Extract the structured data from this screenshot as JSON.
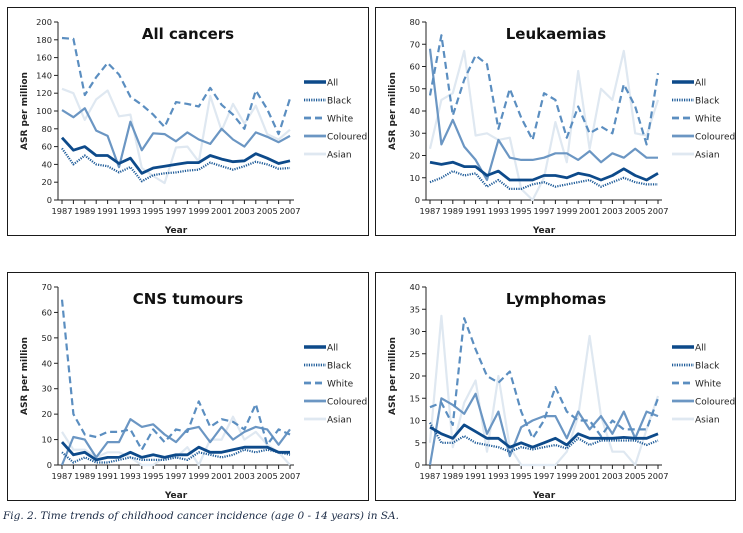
{
  "figure": {
    "caption": "Fig. 2. Time trends of childhood cancer incidence (age 0 - 14 years) in SA."
  },
  "legend_style": {
    "All": {
      "color": "#0d4a8a",
      "dash": "solid",
      "weight": "thick"
    },
    "Black": {
      "color": "#1f5c99",
      "dash": "dotted",
      "weight": "medium"
    },
    "White": {
      "color": "#5b8ec0",
      "dash": "dashed",
      "weight": "medium"
    },
    "Coloured": {
      "color": "#6b96c3",
      "dash": "solid",
      "weight": "medium"
    },
    "Asian": {
      "color": "#dfe8f1",
      "dash": "solid",
      "weight": "medium"
    }
  },
  "chart_data": [
    {
      "type": "line",
      "title": "All cancers",
      "xlabel": "Year",
      "ylabel": "ASR per million",
      "ylim": [
        0,
        200
      ],
      "yticks": [
        0,
        20,
        40,
        60,
        80,
        100,
        120,
        140,
        160,
        180,
        200
      ],
      "xtick_labels": [
        "1987",
        "1989",
        "1991",
        "1993",
        "1995",
        "1997",
        "1999",
        "2001",
        "2003",
        "2005",
        "2007"
      ],
      "x": [
        1987,
        1988,
        1989,
        1990,
        1991,
        1992,
        1993,
        1994,
        1995,
        1996,
        1997,
        1998,
        1999,
        2000,
        2001,
        2002,
        2003,
        2004,
        2005,
        2006,
        2007
      ],
      "legend": "right",
      "grid": false,
      "series": [
        {
          "name": "All",
          "values": [
            70,
            56,
            60,
            50,
            50,
            41,
            47,
            30,
            36,
            38,
            40,
            42,
            42,
            50,
            46,
            43,
            44,
            52,
            47,
            41,
            44
          ]
        },
        {
          "name": "Black",
          "values": [
            58,
            40,
            50,
            40,
            38,
            31,
            37,
            21,
            28,
            30,
            31,
            33,
            34,
            42,
            38,
            34,
            38,
            43,
            40,
            35,
            36
          ]
        },
        {
          "name": "White",
          "values": [
            182,
            181,
            118,
            138,
            154,
            141,
            116,
            107,
            96,
            82,
            110,
            108,
            105,
            126,
            107,
            96,
            80,
            123,
            102,
            74,
            114
          ]
        },
        {
          "name": "Coloured",
          "values": [
            101,
            93,
            103,
            78,
            72,
            37,
            88,
            56,
            75,
            74,
            66,
            76,
            68,
            63,
            80,
            68,
            60,
            76,
            71,
            65,
            72
          ]
        },
        {
          "name": "Asian",
          "values": [
            125,
            120,
            90,
            113,
            123,
            94,
            96,
            36,
            27,
            19,
            59,
            60,
            43,
            117,
            78,
            108,
            86,
            106,
            74,
            68,
            79
          ]
        }
      ]
    },
    {
      "type": "line",
      "title": "Leukaemias",
      "xlabel": "Year",
      "ylabel": "ASR per million",
      "ylim": [
        0,
        80
      ],
      "yticks": [
        0,
        10,
        20,
        30,
        40,
        50,
        60,
        70,
        80
      ],
      "xtick_labels": [
        "1987",
        "1989",
        "1991",
        "1993",
        "1995",
        "1997",
        "1999",
        "2001",
        "2003",
        "2005",
        "2007"
      ],
      "x": [
        1987,
        1988,
        1989,
        1990,
        1991,
        1992,
        1993,
        1994,
        1995,
        1996,
        1997,
        1998,
        1999,
        2000,
        2001,
        2002,
        2003,
        2004,
        2005,
        2006,
        2007
      ],
      "legend": "right",
      "grid": false,
      "series": [
        {
          "name": "All",
          "values": [
            17,
            16,
            17,
            15,
            15,
            11,
            13,
            9,
            9,
            9,
            11,
            11,
            10,
            12,
            11,
            9,
            11,
            14,
            11,
            9,
            12
          ]
        },
        {
          "name": "Black",
          "values": [
            8,
            10,
            13,
            11,
            12,
            6,
            9,
            5,
            5,
            7,
            8,
            6,
            7,
            8,
            9,
            6,
            8,
            10,
            8,
            7,
            7
          ]
        },
        {
          "name": "White",
          "values": [
            47,
            74,
            38,
            54,
            65,
            61,
            32,
            50,
            37,
            27,
            48,
            45,
            28,
            42,
            30,
            33,
            30,
            52,
            42,
            25,
            57
          ]
        },
        {
          "name": "Coloured",
          "values": [
            68,
            25,
            36,
            24,
            18,
            9,
            27,
            19,
            18,
            18,
            19,
            21,
            21,
            18,
            22,
            17,
            21,
            19,
            23,
            19,
            19
          ]
        },
        {
          "name": "Asian",
          "values": [
            23,
            45,
            48,
            67,
            29,
            30,
            27,
            28,
            5,
            0,
            10,
            35,
            17,
            58,
            23,
            50,
            45,
            67,
            30,
            29,
            45
          ]
        }
      ]
    },
    {
      "type": "line",
      "title": "CNS tumours",
      "xlabel": "Year",
      "ylabel": "ASR per million",
      "ylim": [
        0,
        70
      ],
      "yticks": [
        0,
        10,
        20,
        30,
        40,
        50,
        60,
        70
      ],
      "xtick_labels": [
        "1987",
        "1989",
        "1991",
        "1993",
        "1995",
        "1997",
        "1999",
        "2001",
        "2003",
        "2005",
        "2007"
      ],
      "x": [
        1987,
        1988,
        1989,
        1990,
        1991,
        1992,
        1993,
        1994,
        1995,
        1996,
        1997,
        1998,
        1999,
        2000,
        2001,
        2002,
        2003,
        2004,
        2005,
        2006,
        2007
      ],
      "legend": "right",
      "grid": false,
      "series": [
        {
          "name": "All",
          "values": [
            9,
            4,
            5,
            2,
            3,
            3,
            5,
            3,
            4,
            3,
            4,
            4,
            7,
            5,
            5,
            6,
            7,
            7,
            7,
            5,
            5
          ]
        },
        {
          "name": "Black",
          "values": [
            5,
            1,
            3,
            1,
            1,
            2,
            3,
            2,
            2,
            2,
            3,
            2,
            5,
            4,
            3,
            4,
            6,
            5,
            6,
            5,
            4
          ]
        },
        {
          "name": "White",
          "values": [
            65,
            20,
            12,
            11,
            13,
            13,
            14,
            6,
            14,
            9,
            14,
            13,
            25,
            15,
            18,
            17,
            14,
            24,
            8,
            14,
            12
          ]
        },
        {
          "name": "Coloured",
          "values": [
            0,
            11,
            10,
            3,
            9,
            9,
            18,
            15,
            16,
            12,
            9,
            14,
            15,
            9,
            15,
            10,
            13,
            15,
            14,
            8,
            14
          ]
        },
        {
          "name": "Asian",
          "values": [
            13,
            6,
            6,
            3,
            5,
            5,
            3,
            0,
            0,
            3,
            3,
            7,
            0,
            10,
            10,
            19,
            10,
            13,
            8,
            5,
            0
          ]
        }
      ]
    },
    {
      "type": "line",
      "title": "Lymphomas",
      "xlabel": "Year",
      "ylabel": "ASR per million",
      "ylim": [
        0,
        40
      ],
      "yticks": [
        0,
        5,
        10,
        15,
        20,
        25,
        30,
        35,
        40
      ],
      "xtick_labels": [
        "1987",
        "1989",
        "1991",
        "1993",
        "1995",
        "1997",
        "1999",
        "2001",
        "2003",
        "2005",
        "2007"
      ],
      "x": [
        1987,
        1988,
        1989,
        1990,
        1991,
        1992,
        1993,
        1994,
        1995,
        1996,
        1997,
        1998,
        1999,
        2000,
        2001,
        2002,
        2003,
        2004,
        2005,
        2006,
        2007
      ],
      "legend": "right",
      "grid": false,
      "series": [
        {
          "name": "All",
          "values": [
            8.5,
            7,
            6,
            9,
            7.5,
            6,
            6,
            4,
            5,
            4,
            5,
            6,
            4.5,
            7,
            6,
            6,
            6,
            6.2,
            6,
            6,
            7
          ]
        },
        {
          "name": "Black",
          "values": [
            9.5,
            5,
            5,
            6.5,
            5,
            4.5,
            4,
            3,
            4,
            3.5,
            4,
            4.5,
            3.7,
            6,
            4.5,
            5.5,
            5.5,
            5.5,
            5.5,
            4.5,
            5.5
          ]
        },
        {
          "name": "White",
          "values": [
            13,
            14,
            9,
            33,
            26,
            20,
            18.5,
            21,
            12,
            6,
            10,
            17.5,
            12,
            10,
            10,
            6.5,
            10,
            8,
            8,
            8,
            15
          ]
        },
        {
          "name": "Coloured",
          "values": [
            0,
            15,
            13.5,
            11.5,
            16,
            7,
            12,
            2,
            8.5,
            10,
            11,
            11,
            6,
            12,
            8,
            11,
            7,
            12,
            6,
            12,
            11
          ]
        },
        {
          "name": "Asian",
          "values": [
            5,
            33.5,
            4,
            14,
            19,
            3,
            20,
            4,
            0,
            0,
            0,
            0,
            3,
            11,
            29,
            11,
            3,
            3,
            0,
            8,
            15.5
          ]
        }
      ]
    }
  ]
}
